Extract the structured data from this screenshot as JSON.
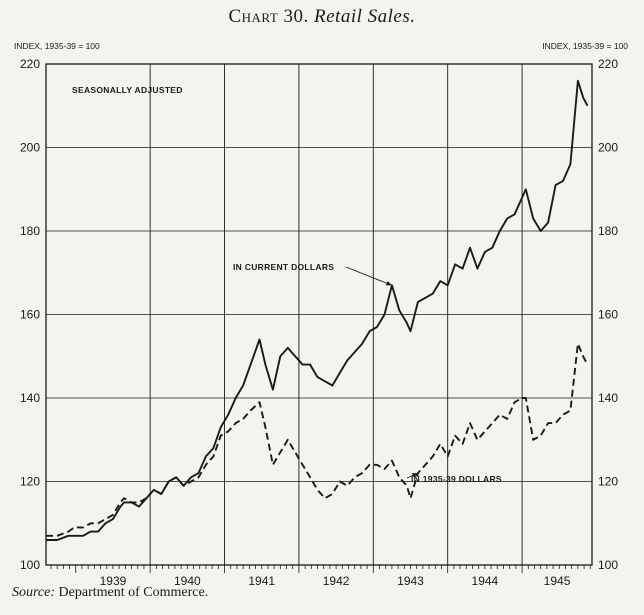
{
  "header": {
    "chart_word": "Chart 30.",
    "chart_name": "Retail Sales."
  },
  "source": {
    "label": "Source:",
    "text": "Department of Commerce."
  },
  "colors": {
    "ink": "#1a1a1a",
    "paper": "#f4f3ef"
  },
  "chart_data": {
    "type": "line",
    "title": "Chart 30. Retail Sales.",
    "left_axis_label": "INDEX, 1935-39 = 100",
    "right_axis_label": "INDEX, 1935-39 = 100",
    "annotation": "SEASONALLY ADJUSTED",
    "ylim": [
      100,
      220
    ],
    "yticks": [
      100,
      120,
      140,
      160,
      180,
      200,
      220
    ],
    "xlim": [
      1938.6,
      1945.94
    ],
    "year_labels": [
      "1939",
      "1940",
      "1941",
      "1942",
      "1943",
      "1944",
      "1945"
    ],
    "year_dividers": [
      1940,
      1941,
      1942,
      1943,
      1944,
      1945
    ],
    "grid": "horizontal and year dividers",
    "series": [
      {
        "name": "IN CURRENT DOLLARS",
        "style": "solid",
        "points": [
          [
            1938.6,
            106
          ],
          [
            1938.75,
            106
          ],
          [
            1938.9,
            107
          ],
          [
            1938.98,
            107
          ],
          [
            1939.1,
            107
          ],
          [
            1939.2,
            108
          ],
          [
            1939.3,
            108
          ],
          [
            1939.4,
            110
          ],
          [
            1939.5,
            111
          ],
          [
            1939.6,
            114
          ],
          [
            1939.65,
            115
          ],
          [
            1939.75,
            115
          ],
          [
            1939.85,
            114
          ],
          [
            1939.95,
            116
          ],
          [
            1940.05,
            118
          ],
          [
            1940.15,
            117
          ],
          [
            1940.25,
            120
          ],
          [
            1940.35,
            121
          ],
          [
            1940.45,
            119
          ],
          [
            1940.55,
            121
          ],
          [
            1940.65,
            122
          ],
          [
            1940.75,
            126
          ],
          [
            1940.85,
            128
          ],
          [
            1940.95,
            133
          ],
          [
            1941.05,
            136
          ],
          [
            1941.15,
            140
          ],
          [
            1941.25,
            143
          ],
          [
            1941.35,
            148
          ],
          [
            1941.47,
            154
          ],
          [
            1941.55,
            148
          ],
          [
            1941.65,
            142
          ],
          [
            1941.75,
            150
          ],
          [
            1941.85,
            152
          ],
          [
            1941.95,
            150
          ],
          [
            1942.05,
            148
          ],
          [
            1942.15,
            148
          ],
          [
            1942.25,
            145
          ],
          [
            1942.35,
            144
          ],
          [
            1942.45,
            143
          ],
          [
            1942.55,
            146
          ],
          [
            1942.65,
            149
          ],
          [
            1942.75,
            151
          ],
          [
            1942.85,
            153
          ],
          [
            1942.95,
            156
          ],
          [
            1943.05,
            157
          ],
          [
            1943.15,
            160
          ],
          [
            1943.25,
            167
          ],
          [
            1943.35,
            161
          ],
          [
            1943.45,
            158
          ],
          [
            1943.5,
            156
          ],
          [
            1943.6,
            163
          ],
          [
            1943.7,
            164
          ],
          [
            1943.8,
            165
          ],
          [
            1943.9,
            168
          ],
          [
            1944.0,
            167
          ],
          [
            1944.1,
            172
          ],
          [
            1944.2,
            171
          ],
          [
            1944.3,
            176
          ],
          [
            1944.4,
            171
          ],
          [
            1944.5,
            175
          ],
          [
            1944.6,
            176
          ],
          [
            1944.7,
            180
          ],
          [
            1944.8,
            183
          ],
          [
            1944.9,
            184
          ],
          [
            1945.0,
            188
          ],
          [
            1945.05,
            190
          ],
          [
            1945.15,
            183
          ],
          [
            1945.25,
            180
          ],
          [
            1945.35,
            182
          ],
          [
            1945.45,
            191
          ],
          [
            1945.55,
            192
          ],
          [
            1945.65,
            196
          ],
          [
            1945.75,
            216
          ],
          [
            1945.82,
            212
          ],
          [
            1945.88,
            210
          ]
        ]
      },
      {
        "name": "IN 1935-39 DOLLARS",
        "style": "dashed",
        "points": [
          [
            1938.6,
            107
          ],
          [
            1938.75,
            107
          ],
          [
            1938.9,
            108
          ],
          [
            1938.98,
            109
          ],
          [
            1939.1,
            109
          ],
          [
            1939.2,
            110
          ],
          [
            1939.3,
            110
          ],
          [
            1939.4,
            111
          ],
          [
            1939.5,
            112
          ],
          [
            1939.6,
            115
          ],
          [
            1939.65,
            116
          ],
          [
            1939.75,
            115
          ],
          [
            1939.85,
            115
          ],
          [
            1939.95,
            116
          ],
          [
            1940.05,
            118
          ],
          [
            1940.15,
            117
          ],
          [
            1940.25,
            120
          ],
          [
            1940.35,
            121
          ],
          [
            1940.45,
            119
          ],
          [
            1940.55,
            120
          ],
          [
            1940.65,
            121
          ],
          [
            1940.75,
            124
          ],
          [
            1940.85,
            126
          ],
          [
            1940.95,
            131
          ],
          [
            1941.05,
            132
          ],
          [
            1941.15,
            134
          ],
          [
            1941.25,
            135
          ],
          [
            1941.35,
            137
          ],
          [
            1941.47,
            139
          ],
          [
            1941.55,
            133
          ],
          [
            1941.65,
            124
          ],
          [
            1941.75,
            127
          ],
          [
            1941.85,
            130
          ],
          [
            1941.95,
            127
          ],
          [
            1942.05,
            124
          ],
          [
            1942.15,
            121
          ],
          [
            1942.25,
            118
          ],
          [
            1942.35,
            116
          ],
          [
            1942.45,
            117
          ],
          [
            1942.55,
            120
          ],
          [
            1942.65,
            119
          ],
          [
            1942.75,
            121
          ],
          [
            1942.85,
            122
          ],
          [
            1942.95,
            124
          ],
          [
            1943.05,
            124
          ],
          [
            1943.15,
            123
          ],
          [
            1943.25,
            125
          ],
          [
            1943.35,
            121
          ],
          [
            1943.45,
            119
          ],
          [
            1943.5,
            116
          ],
          [
            1943.6,
            122
          ],
          [
            1943.7,
            124
          ],
          [
            1943.8,
            126
          ],
          [
            1943.9,
            129
          ],
          [
            1944.0,
            126
          ],
          [
            1944.1,
            131
          ],
          [
            1944.2,
            129
          ],
          [
            1944.3,
            134
          ],
          [
            1944.4,
            130
          ],
          [
            1944.5,
            132
          ],
          [
            1944.6,
            134
          ],
          [
            1944.7,
            136
          ],
          [
            1944.8,
            135
          ],
          [
            1944.9,
            139
          ],
          [
            1945.0,
            140
          ],
          [
            1945.05,
            140
          ],
          [
            1945.15,
            130
          ],
          [
            1945.25,
            131
          ],
          [
            1945.35,
            134
          ],
          [
            1945.45,
            134
          ],
          [
            1945.55,
            136
          ],
          [
            1945.65,
            137
          ],
          [
            1945.75,
            153
          ],
          [
            1945.82,
            150
          ],
          [
            1945.88,
            148
          ]
        ]
      }
    ]
  }
}
